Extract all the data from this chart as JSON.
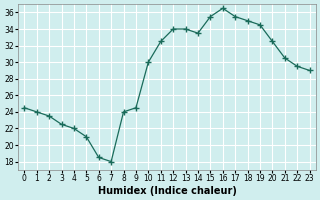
{
  "x": [
    0,
    1,
    2,
    3,
    4,
    5,
    6,
    7,
    8,
    9,
    10,
    11,
    12,
    13,
    14,
    15,
    16,
    17,
    18,
    19,
    20,
    21,
    22,
    23
  ],
  "y": [
    24.5,
    24.0,
    23.5,
    22.5,
    22.0,
    21.0,
    18.5,
    18.0,
    24.0,
    24.5,
    30.0,
    32.5,
    34.0,
    34.0,
    33.5,
    35.5,
    36.5,
    35.5,
    35.0,
    34.5,
    32.5,
    30.5,
    29.5,
    29.0
  ],
  "xlabel": "Humidex (Indice chaleur)",
  "xlim": [
    -0.5,
    23.5
  ],
  "ylim": [
    17,
    37
  ],
  "yticks": [
    18,
    20,
    22,
    24,
    26,
    28,
    30,
    32,
    34,
    36
  ],
  "xticks": [
    0,
    1,
    2,
    3,
    4,
    5,
    6,
    7,
    8,
    9,
    10,
    11,
    12,
    13,
    14,
    15,
    16,
    17,
    18,
    19,
    20,
    21,
    22,
    23
  ],
  "line_color": "#1a6b5a",
  "bg_color": "#d0eeee",
  "grid_color": "#ffffff"
}
